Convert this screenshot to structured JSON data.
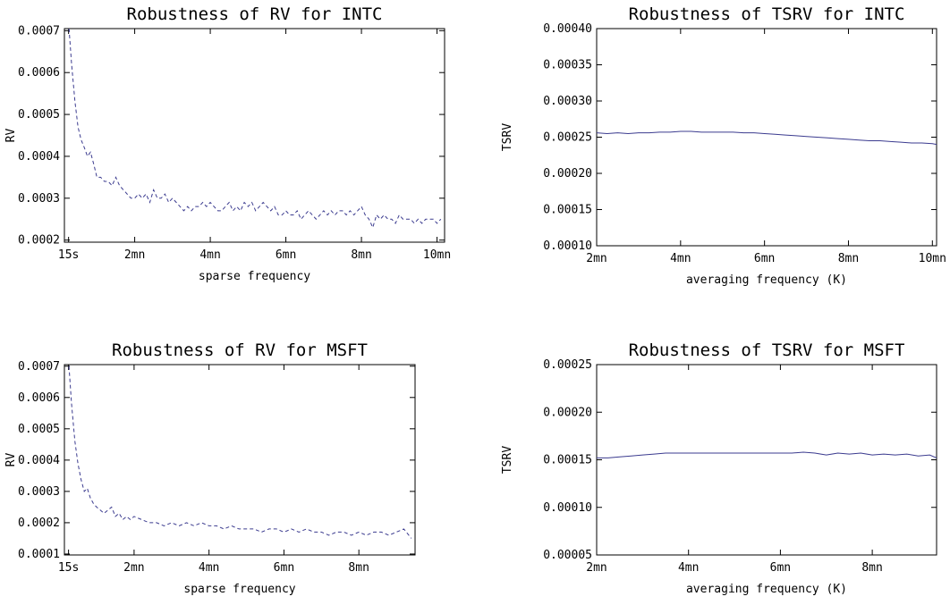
{
  "chart_data": [
    {
      "type": "line",
      "title": "Robustness of RV for INTC",
      "xlabel": "sparse frequency",
      "ylabel": "RV",
      "line_style": "dashed",
      "line_color": "#3b3b8f",
      "grid": false,
      "xlim": [
        0.14,
        10.2
      ],
      "ylim": [
        0.000195,
        0.000705
      ],
      "xticks": [
        {
          "value": 0.25,
          "label": "15s"
        },
        {
          "value": 2,
          "label": "2mn"
        },
        {
          "value": 4,
          "label": "4mn"
        },
        {
          "value": 6,
          "label": "6mn"
        },
        {
          "value": 8,
          "label": "8mn"
        },
        {
          "value": 10,
          "label": "10mn"
        }
      ],
      "yticks": [
        {
          "value": 0.0002,
          "label": "0.0002"
        },
        {
          "value": 0.0003,
          "label": "0.0003"
        },
        {
          "value": 0.0004,
          "label": "0.0004"
        },
        {
          "value": 0.0005,
          "label": "0.0005"
        },
        {
          "value": 0.0006,
          "label": "0.0006"
        },
        {
          "value": 0.0007,
          "label": "0.0007"
        }
      ],
      "series": [
        {
          "x": [
            0.25,
            0.33,
            0.42,
            0.5,
            0.58,
            0.67,
            0.75,
            0.83,
            0.92,
            1.0,
            1.1,
            1.2,
            1.3,
            1.4,
            1.5,
            1.6,
            1.7,
            1.8,
            1.9,
            2.0,
            2.1,
            2.2,
            2.3,
            2.4,
            2.5,
            2.6,
            2.7,
            2.8,
            2.9,
            3.0,
            3.1,
            3.2,
            3.3,
            3.4,
            3.5,
            3.6,
            3.7,
            3.8,
            3.9,
            4.0,
            4.1,
            4.2,
            4.3,
            4.4,
            4.5,
            4.6,
            4.7,
            4.8,
            4.9,
            5.0,
            5.1,
            5.2,
            5.3,
            5.4,
            5.5,
            5.6,
            5.7,
            5.8,
            5.9,
            6.0,
            6.1,
            6.2,
            6.3,
            6.4,
            6.5,
            6.6,
            6.7,
            6.8,
            6.9,
            7.0,
            7.1,
            7.2,
            7.3,
            7.4,
            7.5,
            7.6,
            7.7,
            7.8,
            7.9,
            8.0,
            8.1,
            8.2,
            8.3,
            8.4,
            8.5,
            8.6,
            8.7,
            8.8,
            8.9,
            9.0,
            9.1,
            9.2,
            9.3,
            9.4,
            9.5,
            9.6,
            9.7,
            9.8,
            9.9,
            10.0,
            10.1
          ],
          "y": [
            0.00072,
            0.00062,
            0.00053,
            0.00047,
            0.00044,
            0.00042,
            0.0004,
            0.00041,
            0.00038,
            0.00035,
            0.00035,
            0.00034,
            0.00034,
            0.00033,
            0.00035,
            0.00033,
            0.00032,
            0.00031,
            0.0003,
            0.0003,
            0.00031,
            0.0003,
            0.00031,
            0.00029,
            0.00032,
            0.0003,
            0.0003,
            0.00031,
            0.00029,
            0.0003,
            0.00029,
            0.00028,
            0.00027,
            0.00028,
            0.00027,
            0.00028,
            0.00028,
            0.00029,
            0.00028,
            0.00029,
            0.00028,
            0.00027,
            0.00027,
            0.00028,
            0.00029,
            0.00027,
            0.00028,
            0.00027,
            0.00029,
            0.00028,
            0.00029,
            0.00027,
            0.00028,
            0.00029,
            0.00028,
            0.00027,
            0.00028,
            0.00026,
            0.00026,
            0.00027,
            0.00026,
            0.00026,
            0.00027,
            0.00025,
            0.00026,
            0.00027,
            0.00026,
            0.00025,
            0.00026,
            0.00027,
            0.00026,
            0.00027,
            0.00026,
            0.00027,
            0.00027,
            0.00026,
            0.00027,
            0.00026,
            0.00027,
            0.00028,
            0.00026,
            0.00025,
            0.00023,
            0.00026,
            0.00025,
            0.00026,
            0.00025,
            0.00025,
            0.00024,
            0.00026,
            0.00025,
            0.00025,
            0.00025,
            0.00024,
            0.00025,
            0.00024,
            0.00025,
            0.00025,
            0.00025,
            0.00024,
            0.00025
          ]
        }
      ]
    },
    {
      "type": "line",
      "title": "Robustness of TSRV for INTC",
      "xlabel": "averaging frequency (K)",
      "ylabel": "TSRV",
      "line_style": "solid",
      "line_color": "#3b3b8f",
      "grid": false,
      "xlim": [
        2,
        10.1
      ],
      "ylim": [
        0.0001,
        0.0004
      ],
      "xticks": [
        {
          "value": 2,
          "label": "2mn"
        },
        {
          "value": 4,
          "label": "4mn"
        },
        {
          "value": 6,
          "label": "6mn"
        },
        {
          "value": 8,
          "label": "8mn"
        },
        {
          "value": 10,
          "label": "10mn"
        }
      ],
      "yticks": [
        {
          "value": 0.0001,
          "label": "0.00010"
        },
        {
          "value": 0.00015,
          "label": "0.00015"
        },
        {
          "value": 0.0002,
          "label": "0.00020"
        },
        {
          "value": 0.00025,
          "label": "0.00025"
        },
        {
          "value": 0.0003,
          "label": "0.00030"
        },
        {
          "value": 0.00035,
          "label": "0.00035"
        },
        {
          "value": 0.0004,
          "label": "0.00040"
        }
      ],
      "series": [
        {
          "x": [
            2.0,
            2.25,
            2.5,
            2.75,
            3.0,
            3.25,
            3.5,
            3.75,
            4.0,
            4.25,
            4.5,
            4.75,
            5.0,
            5.25,
            5.5,
            5.75,
            6.0,
            6.25,
            6.5,
            6.75,
            7.0,
            7.25,
            7.5,
            7.75,
            8.0,
            8.25,
            8.5,
            8.75,
            9.0,
            9.25,
            9.5,
            9.75,
            10.0,
            10.1
          ],
          "y": [
            0.000256,
            0.000255,
            0.000256,
            0.000255,
            0.000256,
            0.000256,
            0.000257,
            0.000257,
            0.000258,
            0.000258,
            0.000257,
            0.000257,
            0.000257,
            0.000257,
            0.000256,
            0.000256,
            0.000255,
            0.000254,
            0.000253,
            0.000252,
            0.000251,
            0.00025,
            0.000249,
            0.000248,
            0.000247,
            0.000246,
            0.000245,
            0.000245,
            0.000244,
            0.000243,
            0.000242,
            0.000242,
            0.000241,
            0.00024
          ]
        }
      ]
    },
    {
      "type": "line",
      "title": "Robustness of RV for MSFT",
      "xlabel": "sparse frequency",
      "ylabel": "RV",
      "line_style": "dashed",
      "line_color": "#3b3b8f",
      "grid": false,
      "xlim": [
        0.14,
        9.5
      ],
      "ylim": [
        9.7e-05,
        0.000705
      ],
      "xticks": [
        {
          "value": 0.25,
          "label": "15s"
        },
        {
          "value": 2,
          "label": "2mn"
        },
        {
          "value": 4,
          "label": "4mn"
        },
        {
          "value": 6,
          "label": "6mn"
        },
        {
          "value": 8,
          "label": "8mn"
        }
      ],
      "yticks": [
        {
          "value": 0.0001,
          "label": "0.0001"
        },
        {
          "value": 0.0002,
          "label": "0.0002"
        },
        {
          "value": 0.0003,
          "label": "0.0003"
        },
        {
          "value": 0.0004,
          "label": "0.0004"
        },
        {
          "value": 0.0005,
          "label": "0.0005"
        },
        {
          "value": 0.0006,
          "label": "0.0006"
        },
        {
          "value": 0.0007,
          "label": "0.0007"
        }
      ],
      "series": [
        {
          "x": [
            0.25,
            0.33,
            0.42,
            0.5,
            0.58,
            0.67,
            0.75,
            0.83,
            0.92,
            1.0,
            1.1,
            1.2,
            1.3,
            1.4,
            1.5,
            1.6,
            1.7,
            1.8,
            1.9,
            2.0,
            2.2,
            2.4,
            2.6,
            2.8,
            3.0,
            3.2,
            3.4,
            3.6,
            3.8,
            4.0,
            4.2,
            4.4,
            4.6,
            4.8,
            5.0,
            5.2,
            5.4,
            5.6,
            5.8,
            6.0,
            6.2,
            6.4,
            6.6,
            6.8,
            7.0,
            7.2,
            7.4,
            7.6,
            7.8,
            8.0,
            8.2,
            8.4,
            8.6,
            8.8,
            9.0,
            9.2,
            9.4
          ],
          "y": [
            0.00072,
            0.00058,
            0.00046,
            0.00039,
            0.00034,
            0.0003,
            0.00031,
            0.00028,
            0.00026,
            0.00025,
            0.00024,
            0.00023,
            0.00024,
            0.00025,
            0.00022,
            0.00023,
            0.00021,
            0.00022,
            0.00021,
            0.00022,
            0.00021,
            0.0002,
            0.0002,
            0.00019,
            0.0002,
            0.00019,
            0.0002,
            0.00019,
            0.0002,
            0.00019,
            0.00019,
            0.00018,
            0.00019,
            0.00018,
            0.00018,
            0.00018,
            0.00017,
            0.00018,
            0.00018,
            0.00017,
            0.00018,
            0.00017,
            0.00018,
            0.00017,
            0.00017,
            0.00016,
            0.00017,
            0.00017,
            0.00016,
            0.00017,
            0.00016,
            0.00017,
            0.00017,
            0.00016,
            0.00017,
            0.00018,
            0.00015
          ]
        }
      ]
    },
    {
      "type": "line",
      "title": "Robustness of TSRV for MSFT",
      "xlabel": "averaging frequency (K)",
      "ylabel": "TSRV",
      "line_style": "solid",
      "line_color": "#3b3b8f",
      "grid": false,
      "xlim": [
        2,
        9.4
      ],
      "ylim": [
        5e-05,
        0.00025
      ],
      "xticks": [
        {
          "value": 2,
          "label": "2mn"
        },
        {
          "value": 4,
          "label": "4mn"
        },
        {
          "value": 6,
          "label": "6mn"
        },
        {
          "value": 8,
          "label": "8mn"
        }
      ],
      "yticks": [
        {
          "value": 5e-05,
          "label": "0.00005"
        },
        {
          "value": 0.0001,
          "label": "0.00010"
        },
        {
          "value": 0.00015,
          "label": "0.00015"
        },
        {
          "value": 0.0002,
          "label": "0.00020"
        },
        {
          "value": 0.00025,
          "label": "0.00025"
        }
      ],
      "series": [
        {
          "x": [
            2.0,
            2.25,
            2.5,
            2.75,
            3.0,
            3.25,
            3.5,
            3.75,
            4.0,
            4.25,
            4.5,
            4.75,
            5.0,
            5.25,
            5.5,
            5.75,
            6.0,
            6.25,
            6.5,
            6.75,
            7.0,
            7.25,
            7.5,
            7.75,
            8.0,
            8.25,
            8.5,
            8.75,
            9.0,
            9.25,
            9.4
          ],
          "y": [
            0.000152,
            0.000152,
            0.000153,
            0.000154,
            0.000155,
            0.000156,
            0.000157,
            0.000157,
            0.000157,
            0.000157,
            0.000157,
            0.000157,
            0.000157,
            0.000157,
            0.000157,
            0.000157,
            0.000157,
            0.000157,
            0.000158,
            0.000157,
            0.000155,
            0.000157,
            0.000156,
            0.000157,
            0.000155,
            0.000156,
            0.000155,
            0.000156,
            0.000154,
            0.000155,
            0.000152
          ]
        }
      ]
    }
  ]
}
